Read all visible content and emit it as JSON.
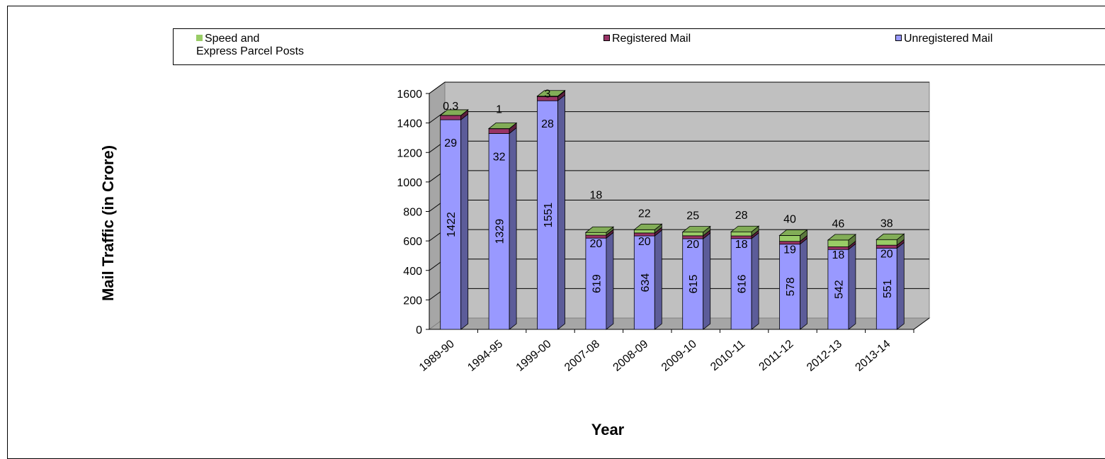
{
  "chart_data": {
    "type": "bar",
    "stacked": true,
    "three_d": true,
    "categories": [
      "1989-90",
      "1994-95",
      "1999-00",
      "2007-08",
      "2008-09",
      "2009-10",
      "2010-11",
      "2011-12",
      "2012-13",
      "2013-14"
    ],
    "series": [
      {
        "name": "Unregistered Mail",
        "values": [
          1422,
          1329,
          1551,
          619,
          634,
          615,
          616,
          578,
          542,
          551
        ],
        "labels": [
          "1422",
          "1329",
          "1551",
          "619",
          "634",
          "615",
          "616",
          "578",
          "542",
          "551"
        ],
        "color": "#9999FF"
      },
      {
        "name": "Registered Mail",
        "values": [
          29,
          32,
          28,
          20,
          20,
          20,
          18,
          19,
          18,
          20
        ],
        "labels": [
          "29",
          "32",
          "28",
          "20",
          "20",
          "20",
          "18",
          "19",
          "18",
          "20"
        ],
        "color": "#993366"
      },
      {
        "name": "Speed and Express Parcel Posts",
        "values": [
          0.3,
          1,
          3,
          18,
          22,
          25,
          28,
          40,
          46,
          38
        ],
        "labels": [
          "0.3",
          "1",
          "3",
          "18",
          "22",
          "25",
          "28",
          "40",
          "46",
          "38"
        ],
        "color": "#99CC66"
      }
    ],
    "legend_order": [
      "Speed and Express Parcel Posts",
      "Registered Mail",
      "Unregistered Mail"
    ],
    "legend_lines": {
      "Speed and Express Parcel Posts": [
        "Speed and",
        "Express Parcel Posts"
      ],
      "Registered Mail": [
        "Registered Mail"
      ],
      "Unregistered Mail": [
        "Unregistered Mail"
      ]
    },
    "legend_position": "top",
    "title": "",
    "xlabel": "Year",
    "ylabel": "Mail Traffic (in Crore)",
    "ylim": [
      0,
      1600
    ],
    "yticks": [
      "0",
      "200",
      "400",
      "600",
      "800",
      "1000",
      "1200",
      "1400",
      "1600"
    ],
    "grid": true,
    "wall_color": "#C0C0C0"
  }
}
